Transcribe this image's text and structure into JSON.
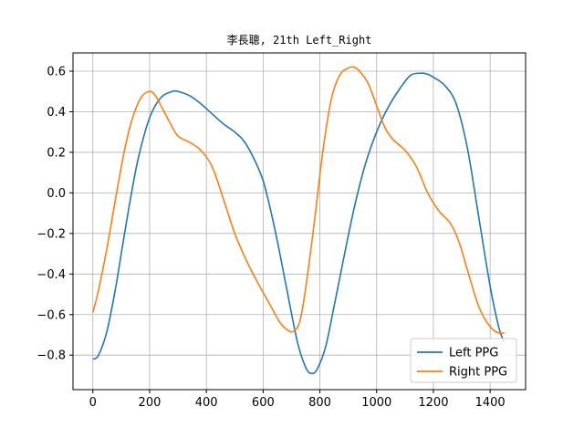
{
  "chart_data": {
    "type": "line",
    "title": "李長聰, 21th Left_Right",
    "xlabel": "",
    "ylabel": "",
    "xlim": [
      -70,
      1525
    ],
    "ylim": [
      -0.97,
      0.69
    ],
    "xticks": [
      0,
      200,
      400,
      600,
      800,
      1000,
      1200,
      1400
    ],
    "xtick_labels": [
      "0",
      "200",
      "400",
      "600",
      "800",
      "1000",
      "1200",
      "1400"
    ],
    "yticks": [
      -0.8,
      -0.6,
      -0.4,
      -0.2,
      0.0,
      0.2,
      0.4,
      0.6
    ],
    "ytick_labels": [
      "−0.8",
      "−0.6",
      "−0.4",
      "−0.2",
      "0.0",
      "0.2",
      "0.4",
      "0.6"
    ],
    "grid": true,
    "legend": "lower-right",
    "series": [
      {
        "name": "Left PPG",
        "color": "#1f77b4",
        "x": [
          0,
          20,
          50,
          80,
          100,
          130,
          160,
          200,
          240,
          280,
          300,
          340,
          380,
          420,
          460,
          500,
          530,
          560,
          600,
          640,
          680,
          720,
          750,
          770,
          790,
          820,
          850,
          880,
          920,
          960,
          1000,
          1040,
          1080,
          1120,
          1160,
          1180,
          1200,
          1240,
          1280,
          1320,
          1360,
          1400,
          1430,
          1450
        ],
        "y": [
          -0.82,
          -0.8,
          -0.68,
          -0.47,
          -0.3,
          -0.05,
          0.17,
          0.37,
          0.47,
          0.5,
          0.5,
          0.48,
          0.44,
          0.39,
          0.34,
          0.3,
          0.26,
          0.19,
          0.06,
          -0.17,
          -0.45,
          -0.73,
          -0.86,
          -0.89,
          -0.87,
          -0.76,
          -0.56,
          -0.35,
          -0.08,
          0.14,
          0.3,
          0.42,
          0.51,
          0.58,
          0.59,
          0.585,
          0.57,
          0.53,
          0.44,
          0.22,
          -0.12,
          -0.46,
          -0.66,
          -0.74
        ]
      },
      {
        "name": "Right PPG",
        "color": "#ff7f0e",
        "x": [
          0,
          20,
          50,
          80,
          110,
          140,
          170,
          200,
          220,
          240,
          270,
          300,
          340,
          380,
          420,
          460,
          500,
          540,
          580,
          620,
          660,
          690,
          710,
          730,
          750,
          780,
          810,
          840,
          870,
          900,
          920,
          940,
          970,
          1000,
          1030,
          1060,
          1100,
          1140,
          1180,
          1220,
          1260,
          1290,
          1320,
          1360,
          1400,
          1430,
          1450
        ],
        "y": [
          -0.59,
          -0.48,
          -0.27,
          -0.03,
          0.2,
          0.37,
          0.47,
          0.5,
          0.48,
          0.43,
          0.35,
          0.28,
          0.25,
          0.21,
          0.13,
          -0.03,
          -0.2,
          -0.33,
          -0.44,
          -0.54,
          -0.64,
          -0.68,
          -0.68,
          -0.63,
          -0.47,
          -0.15,
          0.2,
          0.46,
          0.58,
          0.615,
          0.62,
          0.6,
          0.54,
          0.43,
          0.32,
          0.26,
          0.21,
          0.13,
          0.0,
          -0.09,
          -0.15,
          -0.24,
          -0.38,
          -0.56,
          -0.66,
          -0.69,
          -0.69
        ]
      }
    ]
  }
}
